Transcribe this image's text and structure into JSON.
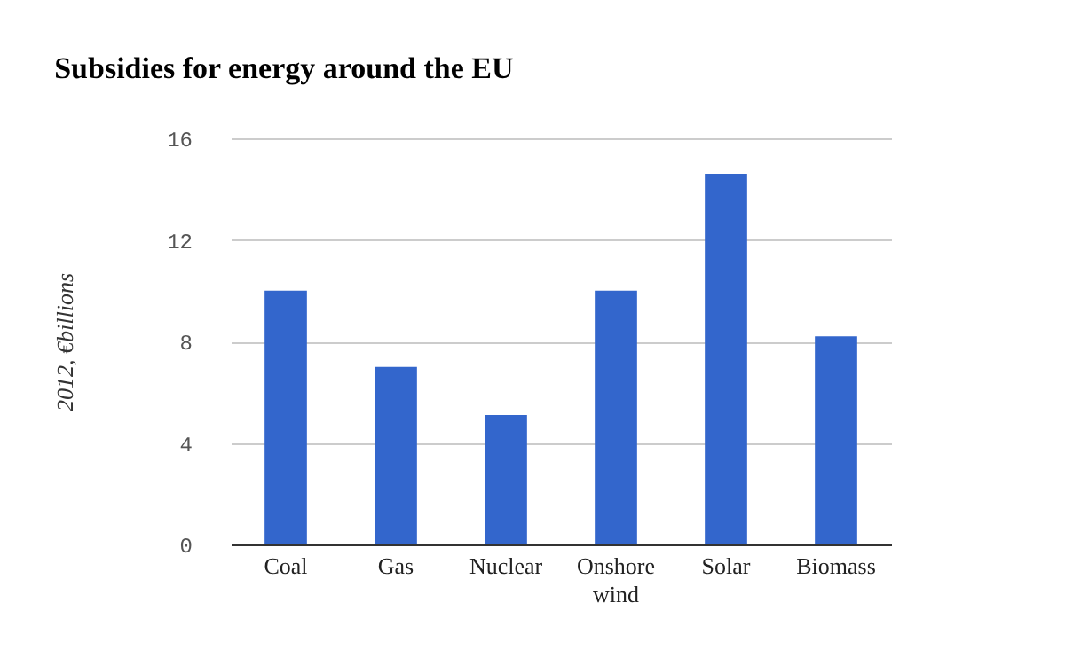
{
  "chart_data": {
    "type": "bar",
    "title": "Subsidies for energy around the EU",
    "ylabel": "2012, €billions",
    "categories": [
      "Coal",
      "Gas",
      "Nuclear",
      "Onshore wind",
      "Solar",
      "Biomass"
    ],
    "values": [
      10.0,
      7.0,
      5.1,
      10.0,
      14.6,
      8.2
    ],
    "color": "#3366cc",
    "ylim": [
      0,
      16
    ],
    "yticks": [
      0,
      4,
      8,
      12,
      16
    ],
    "grid": "y"
  }
}
